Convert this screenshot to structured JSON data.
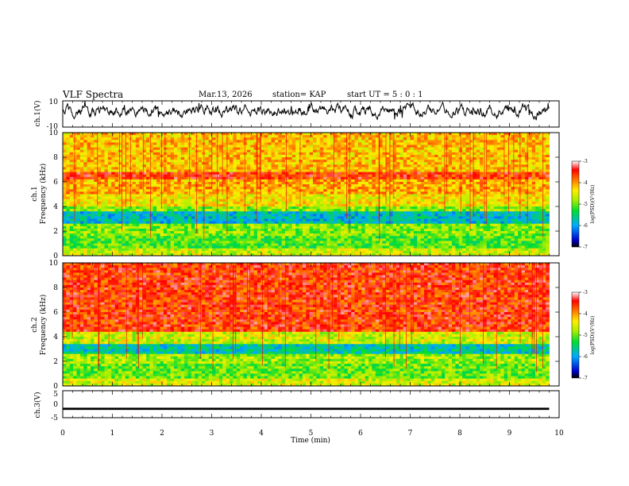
{
  "header": {
    "title": "VLF Spectra",
    "date": "Mar.13, 2026",
    "station": "station= KAP",
    "start": "start UT =  5 : 0 : 1"
  },
  "chart_data": [
    {
      "type": "line",
      "name": "ch1-waveform",
      "ylabel": "ch.1(V)",
      "ylim": [
        -10,
        10
      ],
      "yticks": [
        "10",
        "-10"
      ],
      "xlim": [
        0,
        10
      ],
      "data_end_min": 9.8
    },
    {
      "type": "heatmap",
      "name": "ch1-spectrogram",
      "ylabel": "Frequency (kHz)",
      "channel_label": "ch.1",
      "ylim": [
        0,
        10
      ],
      "yticks": [
        "0",
        "2",
        "4",
        "6",
        "8",
        "10"
      ],
      "xlim": [
        0,
        10
      ],
      "colorbar": {
        "label": "log(PSD)(V²/Hz)",
        "range": [
          -7,
          -3
        ],
        "ticks": [
          "-3",
          "-4",
          "-5",
          "-6",
          "-7"
        ]
      },
      "bands_khz": [
        {
          "from": 0.0,
          "to": 0.6,
          "level": -4.6
        },
        {
          "from": 0.6,
          "to": 1.6,
          "level": -5.1
        },
        {
          "from": 1.6,
          "to": 2.6,
          "level": -4.9
        },
        {
          "from": 2.6,
          "to": 3.6,
          "level": -5.8
        },
        {
          "from": 3.6,
          "to": 4.0,
          "level": -4.9
        },
        {
          "from": 4.0,
          "to": 5.0,
          "level": -4.4
        },
        {
          "from": 5.0,
          "to": 6.2,
          "level": -4.1
        },
        {
          "from": 6.2,
          "to": 6.8,
          "level": -3.6
        },
        {
          "from": 6.8,
          "to": 10.0,
          "level": -4.2
        }
      ]
    },
    {
      "type": "heatmap",
      "name": "ch2-spectrogram",
      "ylabel": "Frequency (kHz)",
      "channel_label": "ch.2",
      "ylim": [
        0,
        10
      ],
      "yticks": [
        "0",
        "2",
        "4",
        "6",
        "8",
        "10"
      ],
      "xlim": [
        0,
        10
      ],
      "colorbar": {
        "label": "log(PSD)(V²/Hz)",
        "range": [
          -7,
          -3
        ],
        "ticks": [
          "-3",
          "-4",
          "-5",
          "-6",
          "-7"
        ]
      },
      "bands_khz": [
        {
          "from": 0.0,
          "to": 0.6,
          "level": -4.6
        },
        {
          "from": 0.6,
          "to": 1.8,
          "level": -5.0
        },
        {
          "from": 1.8,
          "to": 2.6,
          "level": -4.8
        },
        {
          "from": 2.6,
          "to": 3.4,
          "level": -5.7
        },
        {
          "from": 3.4,
          "to": 4.4,
          "level": -4.6
        },
        {
          "from": 4.4,
          "to": 10.0,
          "level": -3.6
        }
      ]
    },
    {
      "type": "line",
      "name": "ch3-waveform",
      "ylabel": "ch.3(V)",
      "ylim": [
        -5,
        5
      ],
      "yticks": [
        "5",
        "0",
        "-5"
      ],
      "xlim": [
        0,
        10
      ],
      "xlabel": "Time (min)",
      "xticks": [
        "0",
        "1",
        "2",
        "3",
        "4",
        "5",
        "6",
        "7",
        "8",
        "9",
        "10"
      ],
      "band_from": -2.1,
      "band_to": -1.3,
      "data_end_min": 9.8
    }
  ]
}
